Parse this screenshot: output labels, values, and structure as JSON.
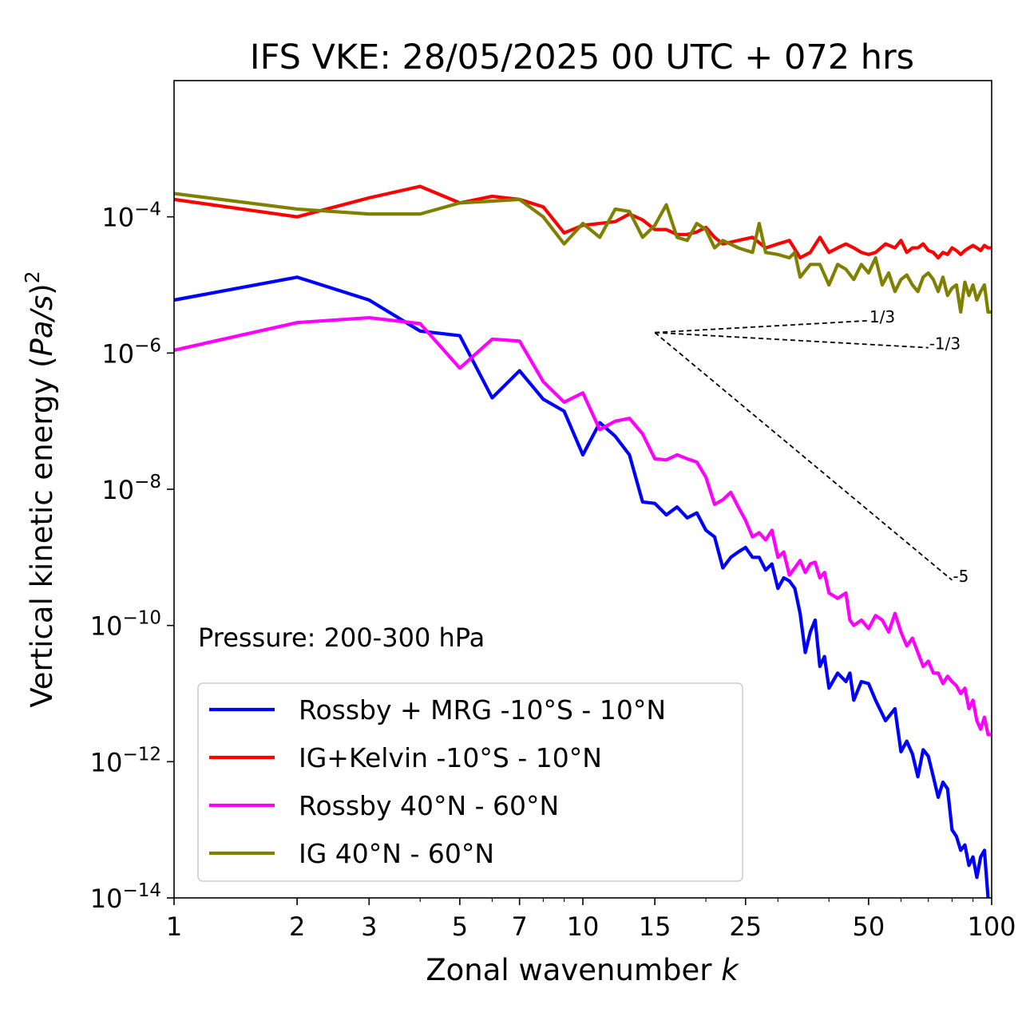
{
  "chart_data": {
    "type": "line",
    "title": "IFS VKE: 28/05/2025 00 UTC + 072 hrs",
    "xlabel": "Zonal wavenumber",
    "xlabel_var": "k",
    "ylabel_prefix": "Vertical kinetic energy (",
    "ylabel_var": "Pa/s",
    "ylabel_suffix": ")",
    "ylabel_exp": "2",
    "x_scale": "log",
    "y_scale": "log",
    "xlim": [
      1,
      100
    ],
    "ylim": [
      1e-14,
      0.01
    ],
    "x_ticks": [
      1,
      2,
      3,
      5,
      7,
      10,
      15,
      25,
      50,
      100
    ],
    "x_tick_labels": [
      "1",
      "2",
      "3",
      "5",
      "7",
      "10",
      "15",
      "25",
      "50",
      "100"
    ],
    "y_ticks": [
      1e-14,
      1e-12,
      1e-10,
      1e-08,
      1e-06,
      0.0001
    ],
    "y_tick_base": "10",
    "y_tick_exponents": [
      "−14",
      "−12",
      "−10",
      "−8",
      "−6",
      "−4"
    ],
    "annotation": "Pressure: 200-300 hPa",
    "legend_position": "lower-left",
    "grid": false,
    "reference_slopes": [
      {
        "label": "1/3",
        "slope": 0.3333,
        "x_start": 15,
        "x_end": 50,
        "y_start": 2e-06
      },
      {
        "label": "-1/3",
        "slope": -0.3333,
        "x_start": 15,
        "x_end": 70,
        "y_start": 2e-06
      },
      {
        "label": "-5",
        "slope": -5,
        "x_start": 15,
        "x_end": 80,
        "y_start": 2e-06
      }
    ],
    "series": [
      {
        "name": "Rossby + MRG -10°S - 10°N",
        "color": "#0000ff",
        "points": [
          [
            1,
            6e-06
          ],
          [
            2,
            1.3e-05
          ],
          [
            3,
            6e-06
          ],
          [
            4,
            2.1e-06
          ],
          [
            5,
            1.8e-06
          ],
          [
            6,
            2.2e-07
          ],
          [
            7,
            5.5e-07
          ],
          [
            8,
            2.1e-07
          ],
          [
            9,
            1.4e-07
          ],
          [
            10,
            3.2e-08
          ],
          [
            11,
            9.5e-08
          ],
          [
            12,
            6e-08
          ],
          [
            13,
            3.2e-08
          ],
          [
            14,
            6.5e-09
          ],
          [
            15,
            6.2e-09
          ],
          [
            16,
            4.2e-09
          ],
          [
            17,
            5.5e-09
          ],
          [
            18,
            3.8e-09
          ],
          [
            19,
            4.5e-09
          ],
          [
            20,
            2.5e-09
          ],
          [
            21,
            2e-09
          ],
          [
            22,
            7e-10
          ],
          [
            23,
            1e-09
          ],
          [
            24,
            1.2e-09
          ],
          [
            25,
            1.4e-09
          ],
          [
            26,
            1e-09
          ],
          [
            27,
            1e-09
          ],
          [
            28,
            6.5e-10
          ],
          [
            29,
            8e-10
          ],
          [
            30,
            3.5e-10
          ],
          [
            31,
            5e-10
          ],
          [
            32,
            4.5e-10
          ],
          [
            33,
            3.5e-10
          ],
          [
            34,
            1.5e-10
          ],
          [
            35,
            4e-11
          ],
          [
            36,
            8e-11
          ],
          [
            37,
            1.2e-10
          ],
          [
            38,
            2.5e-11
          ],
          [
            39,
            3.5e-11
          ],
          [
            40,
            1.2e-11
          ],
          [
            42,
            2e-11
          ],
          [
            44,
            1.5e-11
          ],
          [
            45,
            2e-11
          ],
          [
            46,
            8e-12
          ],
          [
            48,
            1.5e-11
          ],
          [
            50,
            1.4e-11
          ],
          [
            52,
            8e-12
          ],
          [
            55,
            4e-12
          ],
          [
            58,
            6e-12
          ],
          [
            60,
            1.4e-12
          ],
          [
            62,
            2e-12
          ],
          [
            64,
            1.3e-12
          ],
          [
            66,
            6e-13
          ],
          [
            68,
            1.5e-12
          ],
          [
            70,
            1.2e-12
          ],
          [
            72,
            6e-13
          ],
          [
            74,
            3e-13
          ],
          [
            76,
            5e-13
          ],
          [
            78,
            4e-13
          ],
          [
            80,
            1e-13
          ],
          [
            82,
            8e-14
          ],
          [
            84,
            5e-14
          ],
          [
            86,
            6e-14
          ],
          [
            88,
            3e-14
          ],
          [
            90,
            4e-14
          ],
          [
            92,
            2e-14
          ],
          [
            94,
            4e-14
          ],
          [
            96,
            5e-14
          ],
          [
            98,
            1e-14
          ],
          [
            100,
            8e-15
          ]
        ]
      },
      {
        "name": "IG+Kelvin -10°S - 10°N",
        "color": "#ff0000",
        "points": [
          [
            1,
            0.00018
          ],
          [
            2,
            0.0001
          ],
          [
            3,
            0.00019
          ],
          [
            4,
            0.00028
          ],
          [
            5,
            0.00016
          ],
          [
            6,
            0.0002
          ],
          [
            7,
            0.00018
          ],
          [
            8,
            0.00014
          ],
          [
            9,
            5.8e-05
          ],
          [
            10,
            7.5e-05
          ],
          [
            11,
            8e-05
          ],
          [
            12,
            8.5e-05
          ],
          [
            13,
            0.00011
          ],
          [
            14,
            9e-05
          ],
          [
            15,
            6.5e-05
          ],
          [
            16,
            6.5e-05
          ],
          [
            17,
            5.5e-05
          ],
          [
            18,
            5.5e-05
          ],
          [
            19,
            6e-05
          ],
          [
            20,
            7e-05
          ],
          [
            21,
            5e-05
          ],
          [
            22,
            4e-05
          ],
          [
            24,
            4.5e-05
          ],
          [
            26,
            5e-05
          ],
          [
            28,
            3.5e-05
          ],
          [
            30,
            4e-05
          ],
          [
            32,
            4.5e-05
          ],
          [
            34,
            2.5e-05
          ],
          [
            36,
            3e-05
          ],
          [
            38,
            5e-05
          ],
          [
            40,
            3e-05
          ],
          [
            42,
            3.5e-05
          ],
          [
            44,
            4e-05
          ],
          [
            46,
            3.5e-05
          ],
          [
            48,
            3e-05
          ],
          [
            50,
            2.8e-05
          ],
          [
            52,
            3e-05
          ],
          [
            55,
            4e-05
          ],
          [
            58,
            3.5e-05
          ],
          [
            60,
            4.5e-05
          ],
          [
            62,
            3e-05
          ],
          [
            64,
            3.5e-05
          ],
          [
            66,
            3.5e-05
          ],
          [
            68,
            4e-05
          ],
          [
            70,
            3.2e-05
          ],
          [
            72,
            3e-05
          ],
          [
            74,
            2.5e-05
          ],
          [
            76,
            3e-05
          ],
          [
            78,
            2.8e-05
          ],
          [
            80,
            3.5e-05
          ],
          [
            82,
            3.2e-05
          ],
          [
            84,
            2.8e-05
          ],
          [
            86,
            3.2e-05
          ],
          [
            88,
            3.5e-05
          ],
          [
            90,
            3.8e-05
          ],
          [
            92,
            3.5e-05
          ],
          [
            94,
            3.2e-05
          ],
          [
            96,
            3.8e-05
          ],
          [
            98,
            3.5e-05
          ],
          [
            100,
            3.5e-05
          ]
        ]
      },
      {
        "name": "Rossby 40°N - 60°N",
        "color": "#ff00ff",
        "points": [
          [
            1,
            1.1e-06
          ],
          [
            2,
            2.8e-06
          ],
          [
            3,
            3.3e-06
          ],
          [
            4,
            2.7e-06
          ],
          [
            5,
            6e-07
          ],
          [
            6,
            1.6e-06
          ],
          [
            7,
            1.5e-06
          ],
          [
            8,
            3.8e-07
          ],
          [
            9,
            1.9e-07
          ],
          [
            10,
            2.6e-07
          ],
          [
            11,
            7.5e-08
          ],
          [
            12,
            1e-07
          ],
          [
            13,
            1.1e-07
          ],
          [
            14,
            6.5e-08
          ],
          [
            15,
            2.8e-08
          ],
          [
            16,
            2.7e-08
          ],
          [
            17,
            3.2e-08
          ],
          [
            18,
            2.8e-08
          ],
          [
            19,
            2.5e-08
          ],
          [
            20,
            1.5e-08
          ],
          [
            21,
            6e-09
          ],
          [
            22,
            7e-09
          ],
          [
            23,
            9e-09
          ],
          [
            24,
            5.5e-09
          ],
          [
            25,
            3.5e-09
          ],
          [
            26,
            2e-09
          ],
          [
            27,
            2.3e-09
          ],
          [
            28,
            1.8e-09
          ],
          [
            29,
            2.5e-09
          ],
          [
            30,
            1e-09
          ],
          [
            31,
            1.2e-09
          ],
          [
            32,
            5.5e-10
          ],
          [
            33,
            7e-10
          ],
          [
            34,
            9e-10
          ],
          [
            35,
            6e-10
          ],
          [
            36,
            8e-10
          ],
          [
            37,
            8.5e-10
          ],
          [
            38,
            5e-10
          ],
          [
            39,
            6e-10
          ],
          [
            40,
            3e-10
          ],
          [
            42,
            2.5e-10
          ],
          [
            44,
            3e-10
          ],
          [
            45,
            1.2e-10
          ],
          [
            46,
            1e-10
          ],
          [
            48,
            1.2e-10
          ],
          [
            50,
            9e-11
          ],
          [
            52,
            1.4e-10
          ],
          [
            54,
            1.2e-10
          ],
          [
            56,
            8e-11
          ],
          [
            58,
            1.5e-10
          ],
          [
            60,
            8e-11
          ],
          [
            62,
            5e-11
          ],
          [
            64,
            6.5e-11
          ],
          [
            66,
            4e-11
          ],
          [
            68,
            2.5e-11
          ],
          [
            70,
            3e-11
          ],
          [
            72,
            2e-11
          ],
          [
            74,
            2e-11
          ],
          [
            76,
            1.4e-11
          ],
          [
            78,
            1.8e-11
          ],
          [
            80,
            1.5e-11
          ],
          [
            82,
            1.3e-11
          ],
          [
            84,
            1e-11
          ],
          [
            86,
            1.2e-11
          ],
          [
            88,
            6e-12
          ],
          [
            90,
            8e-12
          ],
          [
            92,
            4e-12
          ],
          [
            94,
            3e-12
          ],
          [
            96,
            4.5e-12
          ],
          [
            98,
            2.5e-12
          ],
          [
            100,
            2.5e-12
          ]
        ]
      },
      {
        "name": "IG 40°N - 60°N",
        "color": "#808000",
        "points": [
          [
            1,
            0.00022
          ],
          [
            2,
            0.00013
          ],
          [
            3,
            0.00011
          ],
          [
            4,
            0.00011
          ],
          [
            5,
            0.00016
          ],
          [
            6,
            0.00017
          ],
          [
            7,
            0.00018
          ],
          [
            8,
            0.0001
          ],
          [
            9,
            4e-05
          ],
          [
            10,
            8e-05
          ],
          [
            11,
            5e-05
          ],
          [
            12,
            0.00013
          ],
          [
            13,
            0.00012
          ],
          [
            14,
            5e-05
          ],
          [
            15,
            7.5e-05
          ],
          [
            16,
            0.00015
          ],
          [
            17,
            5e-05
          ],
          [
            18,
            4.5e-05
          ],
          [
            19,
            8e-05
          ],
          [
            20,
            6.5e-05
          ],
          [
            21,
            3.5e-05
          ],
          [
            22,
            4.5e-05
          ],
          [
            24,
            3.5e-05
          ],
          [
            26,
            3e-05
          ],
          [
            27,
            8e-05
          ],
          [
            28,
            3e-05
          ],
          [
            30,
            2.8e-05
          ],
          [
            32,
            2.5e-05
          ],
          [
            33,
            3e-05
          ],
          [
            34,
            1.3e-05
          ],
          [
            36,
            2e-05
          ],
          [
            38,
            2e-05
          ],
          [
            40,
            1e-05
          ],
          [
            42,
            2e-05
          ],
          [
            44,
            1.7e-05
          ],
          [
            46,
            1.2e-05
          ],
          [
            48,
            2e-05
          ],
          [
            50,
            1.5e-05
          ],
          [
            52,
            2.5e-05
          ],
          [
            54,
            1e-05
          ],
          [
            56,
            1.5e-05
          ],
          [
            58,
            8e-06
          ],
          [
            60,
            1.2e-05
          ],
          [
            62,
            1.4e-05
          ],
          [
            64,
            1e-05
          ],
          [
            66,
            8e-06
          ],
          [
            68,
            1.3e-05
          ],
          [
            70,
            1.5e-05
          ],
          [
            72,
            1.2e-05
          ],
          [
            74,
            8e-06
          ],
          [
            76,
            1.3e-05
          ],
          [
            78,
            7e-06
          ],
          [
            80,
            9e-06
          ],
          [
            82,
            1e-05
          ],
          [
            84,
            4e-06
          ],
          [
            86,
            1.1e-05
          ],
          [
            88,
            7e-06
          ],
          [
            90,
            1e-05
          ],
          [
            92,
            6e-06
          ],
          [
            94,
            8e-06
          ],
          [
            96,
            1e-05
          ],
          [
            98,
            4e-06
          ],
          [
            100,
            4e-06
          ]
        ]
      }
    ]
  }
}
